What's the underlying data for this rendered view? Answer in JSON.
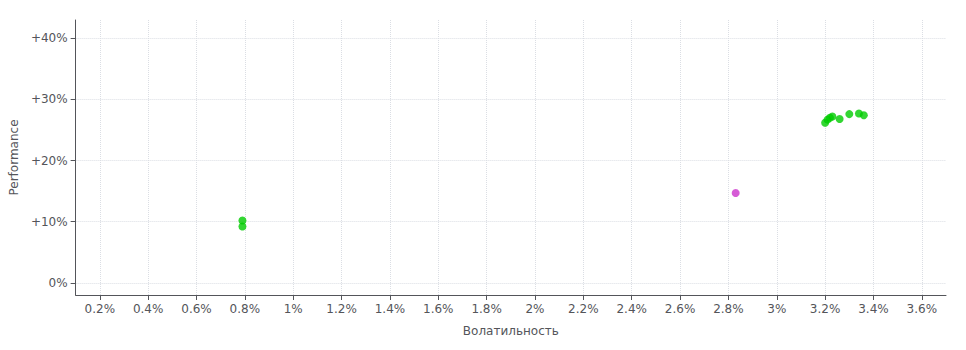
{
  "chart_data": {
    "type": "scatter",
    "xlabel": "Волатильность",
    "ylabel": "Performance",
    "xlim": [
      0.001,
      0.037
    ],
    "ylim": [
      -0.02,
      0.43
    ],
    "xticks": [
      {
        "value": 0.002,
        "label": "0.2%"
      },
      {
        "value": 0.004,
        "label": "0.4%"
      },
      {
        "value": 0.006,
        "label": "0.6%"
      },
      {
        "value": 0.008,
        "label": "0.8%"
      },
      {
        "value": 0.01,
        "label": "1%"
      },
      {
        "value": 0.012,
        "label": "1.2%"
      },
      {
        "value": 0.014,
        "label": "1.4%"
      },
      {
        "value": 0.016,
        "label": "1.6%"
      },
      {
        "value": 0.018,
        "label": "1.8%"
      },
      {
        "value": 0.02,
        "label": "2%"
      },
      {
        "value": 0.022,
        "label": "2.2%"
      },
      {
        "value": 0.024,
        "label": "2.4%"
      },
      {
        "value": 0.026,
        "label": "2.6%"
      },
      {
        "value": 0.028,
        "label": "2.8%"
      },
      {
        "value": 0.03,
        "label": "3%"
      },
      {
        "value": 0.032,
        "label": "3.2%"
      },
      {
        "value": 0.034,
        "label": "3.4%"
      },
      {
        "value": 0.036,
        "label": "3.6%"
      }
    ],
    "yticks": [
      {
        "value": 0.0,
        "label": "0%"
      },
      {
        "value": 0.1,
        "label": "+10%"
      },
      {
        "value": 0.2,
        "label": "+20%"
      },
      {
        "value": 0.3,
        "label": "+30%"
      },
      {
        "value": 0.4,
        "label": "+40%"
      }
    ],
    "grid": true,
    "series": [
      {
        "color": "#00cc00",
        "x": [
          0.0079,
          0.0079,
          0.032,
          0.0321,
          0.0322,
          0.0323,
          0.0326,
          0.033,
          0.0334,
          0.0336
        ],
        "values": [
          0.102,
          0.092,
          0.262,
          0.267,
          0.27,
          0.272,
          0.268,
          0.276,
          0.277,
          0.274
        ]
      },
      {
        "color": "#cc33cc",
        "x": [
          0.0283
        ],
        "values": [
          0.147
        ]
      }
    ]
  }
}
